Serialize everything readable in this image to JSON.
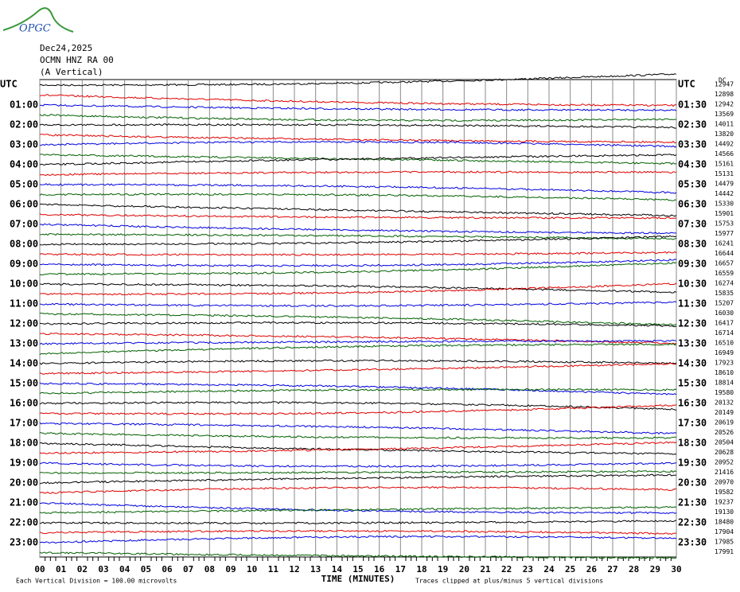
{
  "logo": "OPGC",
  "header": {
    "date": "Dec24,2025",
    "station": "OCMN HNZ RA 00",
    "component": "(A Vertical)"
  },
  "left_labels": [
    "UTC",
    "01:00",
    "02:00",
    "03:00",
    "04:00",
    "05:00",
    "06:00",
    "07:00",
    "08:00",
    "09:00",
    "10:00",
    "11:00",
    "12:00",
    "13:00",
    "14:00",
    "15:00",
    "16:00",
    "17:00",
    "18:00",
    "19:00",
    "20:00",
    "21:00",
    "22:00",
    "23:00"
  ],
  "right_labels": [
    "UTC",
    "01:30",
    "02:30",
    "03:30",
    "04:30",
    "05:30",
    "06:30",
    "07:30",
    "08:30",
    "09:30",
    "10:30",
    "11:30",
    "12:30",
    "13:30",
    "14:30",
    "15:30",
    "16:30",
    "17:30",
    "18:30",
    "19:30",
    "20:30",
    "21:30",
    "22:30",
    "23:30"
  ],
  "right_header": "DC",
  "dc_values": [
    12947,
    12898,
    12942,
    13569,
    14011,
    13820,
    14492,
    14566,
    15161,
    15131,
    14479,
    14442,
    15330,
    15901,
    15753,
    15977,
    16241,
    16644,
    16657,
    16559,
    16274,
    15835,
    15207,
    16030,
    16417,
    16714,
    16510,
    16949,
    17923,
    18610,
    18814,
    19580,
    20132,
    20149,
    20619,
    20526,
    20504,
    20628,
    20952,
    21416,
    20970,
    19582,
    19237,
    19130,
    18480,
    17904,
    17985,
    17991
  ],
  "x_ticks": [
    "00",
    "01",
    "02",
    "03",
    "04",
    "05",
    "06",
    "07",
    "08",
    "09",
    "10",
    "11",
    "12",
    "13",
    "14",
    "15",
    "16",
    "17",
    "18",
    "19",
    "20",
    "21",
    "22",
    "23",
    "24",
    "25",
    "26",
    "27",
    "28",
    "29",
    "30"
  ],
  "x_axis_label": "TIME (MINUTES)",
  "footer_left": "Each Vertical Division =  100.00 microvolts",
  "footer_right": "Traces clipped at plus/minus 5 vertical divisions",
  "trace_colors": [
    "#000000",
    "#e00000",
    "#0000e0",
    "#006000"
  ]
}
